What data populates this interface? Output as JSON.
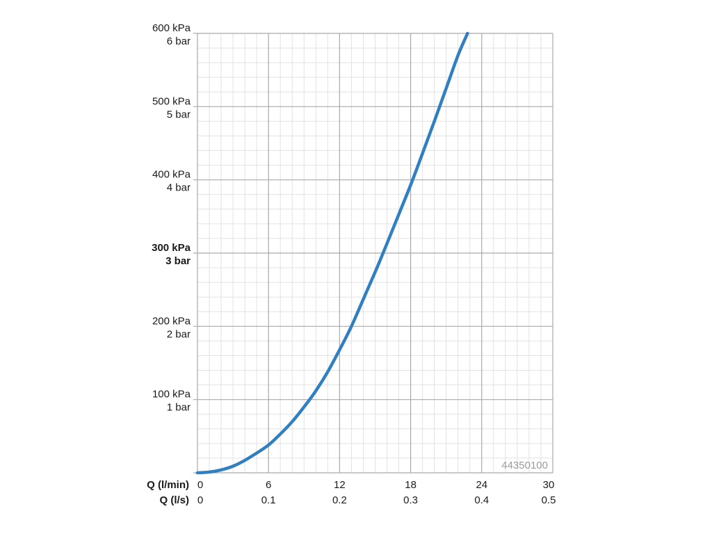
{
  "chart_data": {
    "type": "line",
    "x_axes": [
      {
        "title": "Q (l/min)",
        "ticks": [
          "0",
          "6",
          "12",
          "18",
          "24",
          "30"
        ]
      },
      {
        "title": "Q (l/s)",
        "ticks": [
          "0",
          "0.1",
          "0.2",
          "0.3",
          "0.4",
          "0.5"
        ]
      }
    ],
    "y_axis": {
      "ticks": [
        {
          "value": 100,
          "kpa": "100 kPa",
          "bar": "1 bar",
          "bold": false
        },
        {
          "value": 200,
          "kpa": "200 kPa",
          "bar": "2 bar",
          "bold": false
        },
        {
          "value": 300,
          "kpa": "300 kPa",
          "bar": "3 bar",
          "bold": true
        },
        {
          "value": 400,
          "kpa": "400 kPa",
          "bar": "4 bar",
          "bold": false
        },
        {
          "value": 500,
          "kpa": "500 kPa",
          "bar": "5 bar",
          "bold": false
        },
        {
          "value": 600,
          "kpa": "600 kPa",
          "bar": "6 bar",
          "bold": false
        }
      ]
    },
    "xlim": [
      0,
      30
    ],
    "ylim": [
      0,
      600
    ],
    "grid": true,
    "series": [
      {
        "color": "#2f7fc1",
        "x": [
          0,
          1,
          2,
          3,
          4,
          5,
          6,
          7,
          8,
          9,
          10,
          11,
          12,
          13,
          14,
          15,
          16,
          17,
          18,
          19,
          20,
          21,
          22,
          22.8
        ],
        "y": [
          0,
          1,
          4,
          9,
          17,
          27,
          38,
          53,
          70,
          90,
          112,
          138,
          168,
          200,
          237,
          274,
          313,
          353,
          393,
          436,
          480,
          525,
          570,
          600
        ]
      }
    ],
    "annotation": "44350100"
  }
}
